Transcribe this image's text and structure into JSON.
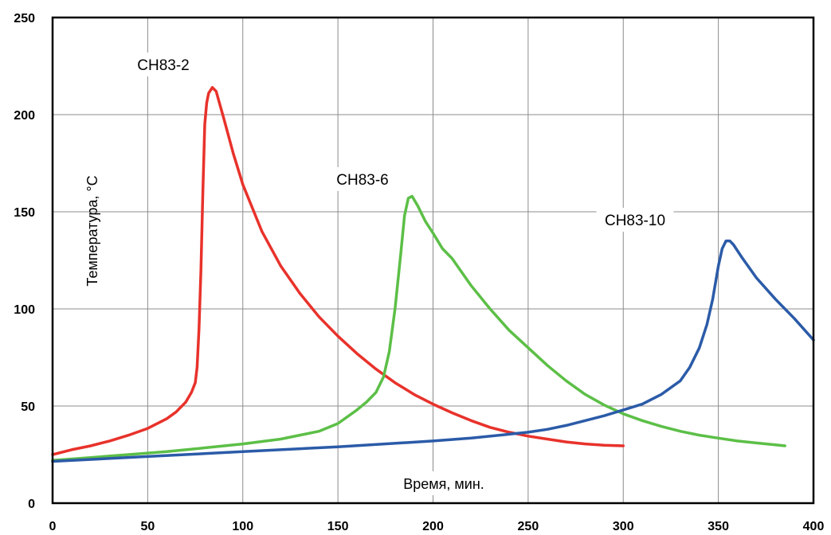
{
  "chart_data": {
    "type": "line",
    "xlabel": "Время, мин.",
    "ylabel": "Температура, °C",
    "xlim": [
      0,
      400
    ],
    "ylim": [
      0,
      250
    ],
    "x_ticks": [
      0,
      50,
      100,
      150,
      200,
      250,
      300,
      350,
      400
    ],
    "y_ticks": [
      0,
      50,
      100,
      150,
      200,
      250
    ],
    "grid": true,
    "series": [
      {
        "name": "СН83-2",
        "color": "#e8322b",
        "points": [
          [
            0,
            25
          ],
          [
            10,
            27.5
          ],
          [
            20,
            29.5
          ],
          [
            30,
            32
          ],
          [
            40,
            35
          ],
          [
            50,
            38.5
          ],
          [
            60,
            43.5
          ],
          [
            65,
            47
          ],
          [
            70,
            52
          ],
          [
            73,
            57
          ],
          [
            75,
            62
          ],
          [
            76,
            70
          ],
          [
            77,
            90
          ],
          [
            78,
            120
          ],
          [
            79,
            160
          ],
          [
            80,
            195
          ],
          [
            81,
            206
          ],
          [
            82,
            211
          ],
          [
            84,
            214
          ],
          [
            86,
            212
          ],
          [
            90,
            198
          ],
          [
            95,
            180
          ],
          [
            100,
            164
          ],
          [
            110,
            140
          ],
          [
            120,
            122
          ],
          [
            130,
            108
          ],
          [
            140,
            96
          ],
          [
            150,
            86
          ],
          [
            160,
            77
          ],
          [
            170,
            69
          ],
          [
            180,
            62
          ],
          [
            190,
            56
          ],
          [
            200,
            51
          ],
          [
            210,
            46.5
          ],
          [
            220,
            42.5
          ],
          [
            230,
            39
          ],
          [
            240,
            36.5
          ],
          [
            250,
            34.5
          ],
          [
            260,
            33
          ],
          [
            270,
            31.5
          ],
          [
            280,
            30.5
          ],
          [
            290,
            29.8
          ],
          [
            300,
            29.5
          ]
        ]
      },
      {
        "name": "СН83-6",
        "color": "#5cbf47",
        "points": [
          [
            0,
            22
          ],
          [
            20,
            23.5
          ],
          [
            40,
            25
          ],
          [
            60,
            26.5
          ],
          [
            80,
            28.5
          ],
          [
            100,
            30.5
          ],
          [
            120,
            33
          ],
          [
            140,
            37
          ],
          [
            150,
            41
          ],
          [
            160,
            48
          ],
          [
            165,
            52
          ],
          [
            170,
            57
          ],
          [
            174,
            65
          ],
          [
            177,
            78
          ],
          [
            180,
            100
          ],
          [
            183,
            128
          ],
          [
            185,
            148
          ],
          [
            187,
            157
          ],
          [
            189,
            158
          ],
          [
            192,
            153
          ],
          [
            196,
            145
          ],
          [
            200,
            139
          ],
          [
            205,
            131
          ],
          [
            210,
            126
          ],
          [
            220,
            112
          ],
          [
            230,
            100
          ],
          [
            240,
            89
          ],
          [
            250,
            80
          ],
          [
            260,
            71
          ],
          [
            270,
            63
          ],
          [
            280,
            56
          ],
          [
            290,
            50.5
          ],
          [
            300,
            46
          ],
          [
            310,
            42.5
          ],
          [
            320,
            39.5
          ],
          [
            330,
            37
          ],
          [
            340,
            35
          ],
          [
            350,
            33.5
          ],
          [
            360,
            32
          ],
          [
            370,
            31
          ],
          [
            380,
            30
          ],
          [
            385,
            29.5
          ]
        ]
      },
      {
        "name": "СН83-10",
        "color": "#2b5ba8",
        "points": [
          [
            0,
            21.5
          ],
          [
            50,
            24
          ],
          [
            100,
            26.5
          ],
          [
            150,
            29
          ],
          [
            200,
            32
          ],
          [
            220,
            33.5
          ],
          [
            240,
            35.5
          ],
          [
            250,
            36.5
          ],
          [
            260,
            38
          ],
          [
            270,
            40
          ],
          [
            280,
            42.5
          ],
          [
            290,
            45
          ],
          [
            300,
            48
          ],
          [
            310,
            51
          ],
          [
            320,
            56
          ],
          [
            330,
            63
          ],
          [
            335,
            70
          ],
          [
            340,
            80
          ],
          [
            344,
            92
          ],
          [
            347,
            105
          ],
          [
            350,
            122
          ],
          [
            352,
            131
          ],
          [
            354,
            135
          ],
          [
            356,
            135
          ],
          [
            358,
            133
          ],
          [
            362,
            127
          ],
          [
            370,
            116
          ],
          [
            380,
            105
          ],
          [
            390,
            95
          ],
          [
            400,
            84
          ]
        ]
      }
    ]
  }
}
